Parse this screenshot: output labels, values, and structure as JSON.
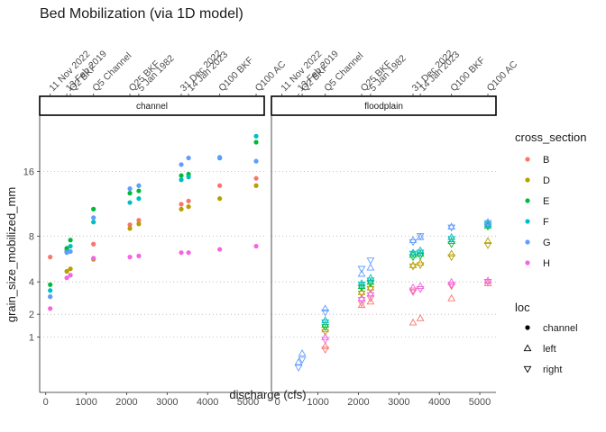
{
  "chart_data": {
    "type": "scatter",
    "title": "Bed Mobilization (via 1D model)",
    "xlabel": "discharge (cfs)",
    "ylabel": "grain_size_mobilized_mm",
    "x_ticks": [
      0,
      1000,
      2000,
      3000,
      4000,
      5000
    ],
    "y_ticks": [
      1,
      2,
      4,
      8,
      16
    ],
    "y_scale": "sqrt",
    "xlim": [
      -150,
      5400
    ],
    "ylim": [
      0,
      25
    ],
    "panels": [
      "channel",
      "floodplain"
    ],
    "top_axis_labels": [
      {
        "label": "11 Nov 2022",
        "x": 110
      },
      {
        "label": "13 Feb 2019",
        "x": 520
      },
      {
        "label": "Q2 BKF",
        "x": 610
      },
      {
        "label": "Q5 Channel",
        "x": 1180
      },
      {
        "label": "Q25 BKF",
        "x": 2080
      },
      {
        "label": "5 Jan 1982",
        "x": 2300
      },
      {
        "label": "31 Dec 2022",
        "x": 3350
      },
      {
        "label": "14 Jan 2023",
        "x": 3530
      },
      {
        "label": "Q100 BKF",
        "x": 4300
      },
      {
        "label": "Q100 AC",
        "x": 5200
      }
    ],
    "legend_cross_section": {
      "title": "cross_section",
      "entries": [
        {
          "name": "B",
          "color": "#F8766D"
        },
        {
          "name": "D",
          "color": "#B79F00"
        },
        {
          "name": "E",
          "color": "#00BA38"
        },
        {
          "name": "F",
          "color": "#00BFC4"
        },
        {
          "name": "G",
          "color": "#619CFF"
        },
        {
          "name": "H",
          "color": "#F564E3"
        }
      ]
    },
    "legend_loc": {
      "title": "loc",
      "entries": [
        {
          "name": "channel",
          "shape": "circle"
        },
        {
          "name": "left",
          "shape": "triangle-up"
        },
        {
          "name": "right",
          "shape": "triangle-down"
        }
      ]
    },
    "series": [
      {
        "panel": "channel",
        "loc": "channel",
        "cross_section": "B",
        "points": [
          [
            110,
            6.0
          ],
          [
            520,
            6.6
          ],
          [
            1180,
            7.2
          ],
          [
            2080,
            9.2
          ],
          [
            2300,
            9.7
          ],
          [
            3350,
            11.6
          ],
          [
            3530,
            12.0
          ],
          [
            4300,
            14.0
          ],
          [
            5200,
            15.0
          ]
        ]
      },
      {
        "panel": "channel",
        "loc": "channel",
        "cross_section": "D",
        "points": [
          [
            110,
            3.0
          ],
          [
            520,
            4.8
          ],
          [
            610,
            5.0
          ],
          [
            1180,
            5.8
          ],
          [
            2080,
            8.8
          ],
          [
            2300,
            9.3
          ],
          [
            3350,
            11.0
          ],
          [
            3530,
            11.3
          ],
          [
            4300,
            12.3
          ],
          [
            5200,
            14.0
          ]
        ]
      },
      {
        "panel": "channel",
        "loc": "channel",
        "cross_section": "E",
        "points": [
          [
            110,
            3.8
          ],
          [
            520,
            6.8
          ],
          [
            610,
            7.6
          ],
          [
            1180,
            11.0
          ],
          [
            2080,
            13.0
          ],
          [
            2300,
            13.3
          ],
          [
            3350,
            15.4
          ],
          [
            3530,
            15.6
          ],
          [
            4300,
            18.0
          ],
          [
            5200,
            20.5
          ]
        ]
      },
      {
        "panel": "channel",
        "loc": "channel",
        "cross_section": "F",
        "points": [
          [
            110,
            3.4
          ],
          [
            520,
            6.5
          ],
          [
            610,
            7.0
          ],
          [
            1180,
            9.5
          ],
          [
            2080,
            11.8
          ],
          [
            2300,
            12.3
          ],
          [
            3350,
            14.8
          ],
          [
            3530,
            15.2
          ],
          [
            4300,
            18.0
          ],
          [
            5200,
            21.5
          ]
        ]
      },
      {
        "panel": "channel",
        "loc": "channel",
        "cross_section": "G",
        "points": [
          [
            110,
            3.0
          ],
          [
            520,
            6.4
          ],
          [
            610,
            6.5
          ],
          [
            1180,
            10.0
          ],
          [
            2080,
            13.6
          ],
          [
            2300,
            14.0
          ],
          [
            3350,
            17.0
          ],
          [
            3530,
            18.0
          ],
          [
            4300,
            18.1
          ],
          [
            5200,
            17.5
          ]
        ]
      },
      {
        "panel": "channel",
        "loc": "channel",
        "cross_section": "H",
        "points": [
          [
            110,
            2.3
          ],
          [
            520,
            4.3
          ],
          [
            610,
            4.5
          ],
          [
            1180,
            5.9
          ],
          [
            2080,
            6.0
          ],
          [
            2300,
            6.1
          ],
          [
            3350,
            6.4
          ],
          [
            3530,
            6.4
          ],
          [
            4300,
            6.7
          ],
          [
            5200,
            7.0
          ]
        ]
      },
      {
        "panel": "floodplain",
        "loc": "left",
        "cross_section": "B",
        "points": [
          [
            1180,
            0.7
          ],
          [
            2080,
            2.5
          ],
          [
            2300,
            2.7
          ],
          [
            3350,
            1.6
          ],
          [
            3530,
            1.8
          ],
          [
            4300,
            2.9
          ],
          [
            5200,
            3.9
          ]
        ]
      },
      {
        "panel": "floodplain",
        "loc": "right",
        "cross_section": "B",
        "points": [
          [
            1180,
            0.6
          ],
          [
            2080,
            2.6
          ],
          [
            2300,
            2.9
          ],
          [
            3350,
            3.4
          ],
          [
            3530,
            3.5
          ],
          [
            4300,
            3.7
          ],
          [
            5200,
            4.0
          ]
        ]
      },
      {
        "panel": "floodplain",
        "loc": "left",
        "cross_section": "D",
        "points": [
          [
            1180,
            1.3
          ],
          [
            2080,
            3.3
          ],
          [
            2300,
            3.6
          ],
          [
            3350,
            5.3
          ],
          [
            3530,
            5.5
          ],
          [
            4300,
            6.3
          ],
          [
            5200,
            7.5
          ]
        ]
      },
      {
        "panel": "floodplain",
        "loc": "right",
        "cross_section": "D",
        "points": [
          [
            1180,
            1.2
          ],
          [
            2080,
            3.2
          ],
          [
            2300,
            3.5
          ],
          [
            3350,
            5.2
          ],
          [
            3530,
            5.3
          ],
          [
            4300,
            6.0
          ],
          [
            5200,
            7.1
          ]
        ]
      },
      {
        "panel": "floodplain",
        "loc": "left",
        "cross_section": "E",
        "points": [
          [
            1180,
            1.5
          ],
          [
            2080,
            3.7
          ],
          [
            2300,
            4.0
          ],
          [
            3350,
            6.2
          ],
          [
            3530,
            6.3
          ],
          [
            4300,
            7.5
          ],
          [
            5200,
            9.1
          ]
        ]
      },
      {
        "panel": "floodplain",
        "loc": "right",
        "cross_section": "E",
        "points": [
          [
            1180,
            1.4
          ],
          [
            2080,
            3.6
          ],
          [
            2300,
            3.9
          ],
          [
            3350,
            6.0
          ],
          [
            3530,
            6.1
          ],
          [
            4300,
            7.2
          ],
          [
            5200,
            9.0
          ]
        ]
      },
      {
        "panel": "floodplain",
        "loc": "left",
        "cross_section": "F",
        "points": [
          [
            1180,
            1.7
          ],
          [
            2080,
            3.9
          ],
          [
            2300,
            4.3
          ],
          [
            3350,
            6.4
          ],
          [
            3530,
            6.6
          ],
          [
            4300,
            7.9
          ],
          [
            5200,
            9.3
          ]
        ]
      },
      {
        "panel": "floodplain",
        "loc": "right",
        "cross_section": "F",
        "points": [
          [
            1180,
            1.6
          ],
          [
            2080,
            3.8
          ],
          [
            2300,
            4.1
          ],
          [
            3350,
            6.3
          ],
          [
            3530,
            6.4
          ],
          [
            4300,
            7.7
          ],
          [
            5200,
            9.2
          ]
        ]
      },
      {
        "panel": "floodplain",
        "loc": "left",
        "cross_section": "G",
        "points": [
          [
            520,
            0.3
          ],
          [
            610,
            0.5
          ],
          [
            1180,
            2.3
          ],
          [
            2080,
            4.6
          ],
          [
            2300,
            5.1
          ],
          [
            3350,
            7.6
          ],
          [
            3530,
            7.9
          ],
          [
            4300,
            9.0
          ],
          [
            5200,
            9.5
          ]
        ]
      },
      {
        "panel": "floodplain",
        "loc": "right",
        "cross_section": "G",
        "points": [
          [
            520,
            0.2
          ],
          [
            610,
            0.35
          ],
          [
            1180,
            2.1
          ],
          [
            2080,
            5.0
          ],
          [
            2300,
            5.7
          ],
          [
            3350,
            7.4
          ],
          [
            3530,
            8.0
          ],
          [
            4300,
            8.9
          ],
          [
            5200,
            9.4
          ]
        ]
      },
      {
        "panel": "floodplain",
        "loc": "left",
        "cross_section": "H",
        "points": [
          [
            1180,
            1.0
          ],
          [
            2080,
            2.9
          ],
          [
            2300,
            3.2
          ],
          [
            3350,
            3.6
          ],
          [
            3530,
            3.7
          ],
          [
            4300,
            4.0
          ],
          [
            5200,
            4.1
          ]
        ]
      },
      {
        "panel": "floodplain",
        "loc": "right",
        "cross_section": "H",
        "points": [
          [
            1180,
            0.9
          ],
          [
            2080,
            2.8
          ],
          [
            2300,
            3.1
          ],
          [
            3350,
            3.3
          ],
          [
            3530,
            3.5
          ],
          [
            4300,
            3.8
          ],
          [
            5200,
            4.0
          ]
        ]
      }
    ]
  }
}
